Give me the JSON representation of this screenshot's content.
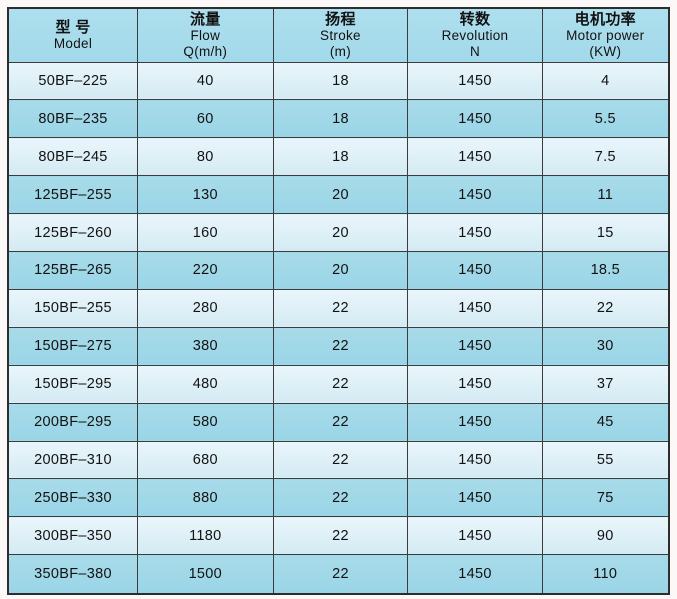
{
  "chart_data": {
    "type": "table",
    "title": "Pump model specification table",
    "columns": [
      {
        "zh": "型  号",
        "en": "Model",
        "sub": ""
      },
      {
        "zh": "流量",
        "en": "Flow",
        "sub": "Q(m/h)"
      },
      {
        "zh": "扬程",
        "en": "Stroke",
        "sub": "(m)"
      },
      {
        "zh": "转数",
        "en": "Revolution",
        "sub": "N"
      },
      {
        "zh": "电机功率",
        "en": "Motor power",
        "sub": "(KW)"
      }
    ],
    "rows": [
      [
        "50BF–225",
        "40",
        "18",
        "1450",
        "4"
      ],
      [
        "80BF–235",
        "60",
        "18",
        "1450",
        "5.5"
      ],
      [
        "80BF–245",
        "80",
        "18",
        "1450",
        "7.5"
      ],
      [
        "125BF–255",
        "130",
        "20",
        "1450",
        "11"
      ],
      [
        "125BF–260",
        "160",
        "20",
        "1450",
        "15"
      ],
      [
        "125BF–265",
        "220",
        "20",
        "1450",
        "18.5"
      ],
      [
        "150BF–255",
        "280",
        "22",
        "1450",
        "22"
      ],
      [
        "150BF–275",
        "380",
        "22",
        "1450",
        "30"
      ],
      [
        "150BF–295",
        "480",
        "22",
        "1450",
        "37"
      ],
      [
        "200BF–295",
        "580",
        "22",
        "1450",
        "45"
      ],
      [
        "200BF–310",
        "680",
        "22",
        "1450",
        "55"
      ],
      [
        "250BF–330",
        "880",
        "22",
        "1450",
        "75"
      ],
      [
        "300BF–350",
        "1180",
        "22",
        "1450",
        "90"
      ],
      [
        "350BF–380",
        "1500",
        "22",
        "1450",
        "110"
      ]
    ],
    "layout": {
      "grid": "on",
      "row_shading": "alternating light/dark cyan starting light"
    }
  },
  "colors": {
    "header_bg": "#a8dcec",
    "row_light": "#ddeff6",
    "row_dark": "#9fd8e8",
    "outer_border": "#2d2d2d",
    "inner_border": "#3c3c3c",
    "text": "#121212",
    "page_bg": "#fcf8f8"
  }
}
